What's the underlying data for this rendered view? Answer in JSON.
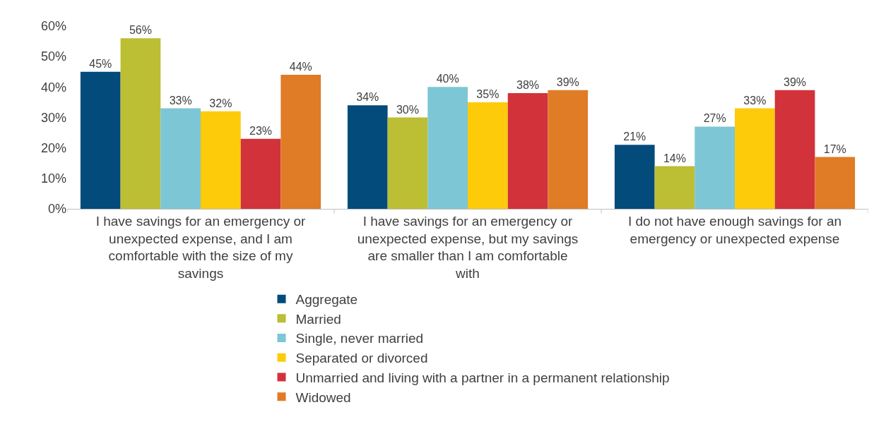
{
  "chart_data": {
    "type": "bar",
    "categories": [
      "I have savings for an emergency or unexpected expense, and I am comfortable with the size of my savings",
      "I have savings for an emergency or unexpected expense, but my savings are smaller than I am comfortable with",
      "I do not have enough savings for an emergency or unexpected expense"
    ],
    "series": [
      {
        "name": "Aggregate",
        "color": "#034b7b",
        "values": [
          45,
          34,
          21
        ],
        "value_labels": [
          "45%",
          "34%",
          "21%"
        ]
      },
      {
        "name": "Married",
        "color": "#bcbe33",
        "values": [
          56,
          30,
          14
        ],
        "value_labels": [
          "56%",
          "30%",
          "14%"
        ]
      },
      {
        "name": "Single, never married",
        "color": "#7dc6d5",
        "values": [
          33,
          40,
          27
        ],
        "value_labels": [
          "33%",
          "40%",
          "27%"
        ]
      },
      {
        "name": "Separated or divorced",
        "color": "#fdcb0a",
        "values": [
          32,
          35,
          33
        ],
        "value_labels": [
          "32%",
          "35%",
          "33%"
        ]
      },
      {
        "name": "Unmarried and living with a partner in a permanent relationship",
        "color": "#d2323a",
        "values": [
          23,
          38,
          39
        ],
        "value_labels": [
          "23%",
          "38%",
          "39%"
        ]
      },
      {
        "name": "Widowed",
        "color": "#e07b26",
        "values": [
          44,
          39,
          17
        ],
        "value_labels": [
          "44%",
          "39%",
          "17%"
        ]
      }
    ],
    "ylim": [
      0,
      60
    ],
    "yticks": [
      {
        "value": 0,
        "label": "0%"
      },
      {
        "value": 10,
        "label": "10%"
      },
      {
        "value": 20,
        "label": "20%"
      },
      {
        "value": 30,
        "label": "30%"
      },
      {
        "value": 40,
        "label": "40%"
      },
      {
        "value": 50,
        "label": "50%"
      },
      {
        "value": 60,
        "label": "60%"
      }
    ],
    "grid": false,
    "legend": "bottom"
  }
}
